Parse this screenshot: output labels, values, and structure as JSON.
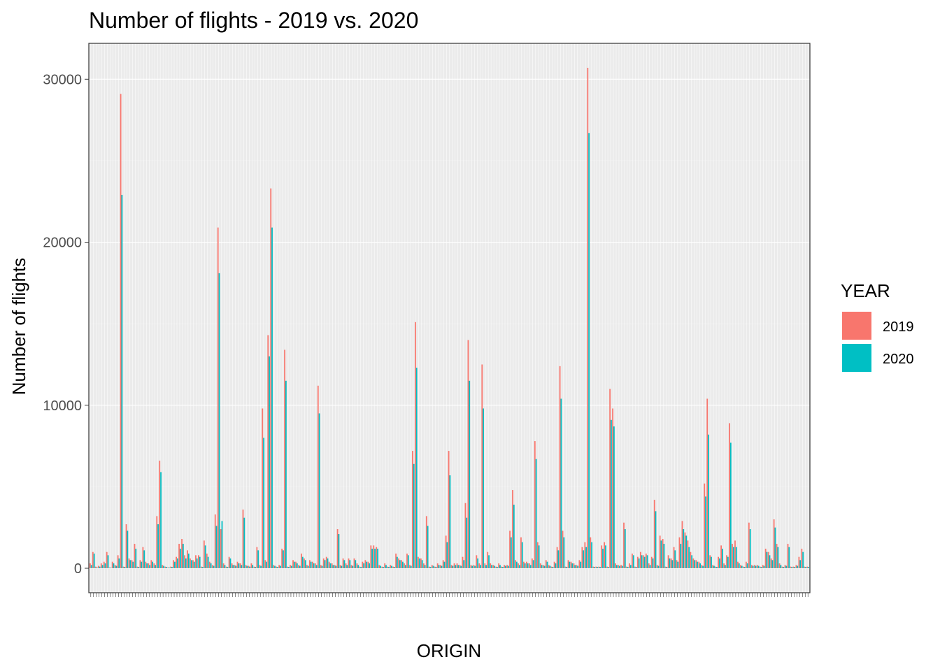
{
  "chart_data": {
    "type": "bar",
    "title": "Number of flights - 2019 vs. 2020",
    "xlabel": "ORIGIN",
    "ylabel": "Number of flights",
    "ylim": [
      -1500,
      32200
    ],
    "yticks": [
      0,
      10000,
      20000,
      30000
    ],
    "grid": true,
    "legend": {
      "title": "YEAR",
      "placement": "right",
      "entries": [
        "2019",
        "2020"
      ]
    },
    "colors": {
      "2019": "#F8766D",
      "2020": "#00BFC4"
    },
    "series": [
      {
        "name": "2019",
        "values": [
          300,
          1000,
          100,
          150,
          300,
          400,
          1000,
          50,
          400,
          200,
          800,
          29100,
          100,
          2700,
          600,
          500,
          1500,
          100,
          500,
          1300,
          400,
          300,
          500,
          300,
          3200,
          6600,
          200,
          100,
          50,
          100,
          500,
          700,
          1500,
          1800,
          800,
          1100,
          600,
          500,
          800,
          800,
          100,
          1700,
          900,
          400,
          200,
          3300,
          20900,
          2400,
          300,
          100,
          700,
          300,
          200,
          400,
          300,
          3600,
          200,
          150,
          300,
          100,
          1300,
          200,
          9800,
          500,
          14300,
          23300,
          200,
          100,
          200,
          1200,
          13400,
          100,
          200,
          500,
          400,
          200,
          900,
          600,
          200,
          500,
          400,
          300,
          11200,
          200,
          600,
          700,
          400,
          300,
          200,
          2400,
          200,
          600,
          300,
          600,
          200,
          600,
          300,
          100,
          400,
          500,
          400,
          1400,
          1400,
          1300,
          200,
          100,
          300,
          100,
          200,
          100,
          900,
          600,
          500,
          300,
          900,
          200,
          7200,
          15100,
          700,
          600,
          300,
          3200,
          100,
          200,
          100,
          300,
          200,
          500,
          2000,
          7200,
          200,
          300,
          300,
          200,
          700,
          4000,
          14000,
          200,
          200,
          800,
          300,
          12500,
          300,
          1000,
          300,
          200,
          100,
          300,
          100,
          200,
          200,
          2300,
          4800,
          500,
          300,
          1900,
          400,
          400,
          300,
          600,
          7800,
          1600,
          300,
          200,
          500,
          200,
          100,
          400,
          1300,
          12400,
          2300,
          100,
          500,
          400,
          300,
          200,
          500,
          1300,
          1600,
          30700,
          1900,
          100,
          100,
          100,
          1400,
          1600,
          100,
          11000,
          9800,
          300,
          200,
          200,
          2800,
          100,
          300,
          900,
          100,
          700,
          1000,
          800,
          900,
          300,
          700,
          4200,
          200,
          2000,
          1800,
          100,
          800,
          600,
          1300,
          500,
          1900,
          2900,
          2200,
          1700,
          1000,
          600,
          500,
          400,
          200,
          5200,
          10400,
          800,
          200,
          100,
          700,
          1400,
          300,
          800,
          8900,
          1500,
          1700,
          400,
          200,
          100,
          400,
          2800,
          200,
          200,
          200,
          100,
          200,
          1200,
          1000,
          600,
          3000,
          1500,
          300,
          100,
          200,
          1500,
          100,
          100,
          200,
          700,
          1200,
          100,
          100
        ]
      },
      {
        "name": "2020",
        "values": [
          200,
          900,
          50,
          100,
          200,
          300,
          800,
          30,
          300,
          150,
          600,
          22900,
          80,
          2300,
          500,
          400,
          1200,
          80,
          400,
          1100,
          300,
          200,
          400,
          200,
          2700,
          5900,
          150,
          80,
          40,
          80,
          400,
          600,
          1200,
          1500,
          600,
          900,
          500,
          400,
          600,
          700,
          80,
          1400,
          700,
          300,
          150,
          2600,
          18100,
          2900,
          200,
          80,
          600,
          200,
          150,
          300,
          200,
          3100,
          150,
          100,
          200,
          80,
          1100,
          150,
          8000,
          400,
          13000,
          20900,
          150,
          80,
          150,
          1100,
          11500,
          80,
          150,
          400,
          300,
          150,
          700,
          500,
          150,
          400,
          300,
          200,
          9500,
          150,
          500,
          600,
          300,
          200,
          150,
          2100,
          150,
          500,
          200,
          500,
          150,
          500,
          200,
          80,
          300,
          400,
          300,
          1200,
          1200,
          1200,
          150,
          80,
          200,
          80,
          150,
          80,
          700,
          500,
          400,
          200,
          800,
          150,
          6400,
          12300,
          600,
          500,
          200,
          2600,
          80,
          150,
          80,
          200,
          150,
          400,
          1600,
          5700,
          150,
          200,
          200,
          150,
          500,
          3100,
          11500,
          150,
          150,
          600,
          200,
          9800,
          200,
          800,
          200,
          150,
          80,
          200,
          80,
          150,
          150,
          1900,
          3900,
          400,
          200,
          1600,
          300,
          300,
          200,
          500,
          6700,
          1400,
          200,
          150,
          400,
          150,
          80,
          300,
          1100,
          10400,
          1900,
          80,
          400,
          300,
          200,
          150,
          400,
          1100,
          1300,
          26700,
          1600,
          80,
          80,
          80,
          1200,
          1400,
          80,
          9100,
          8700,
          200,
          150,
          150,
          2400,
          80,
          200,
          800,
          80,
          600,
          800,
          700,
          800,
          200,
          600,
          3500,
          150,
          1700,
          1500,
          80,
          600,
          500,
          1100,
          400,
          1500,
          2400,
          2000,
          1300,
          800,
          500,
          400,
          300,
          150,
          4400,
          8200,
          700,
          150,
          80,
          600,
          1200,
          200,
          700,
          7700,
          1300,
          1300,
          300,
          150,
          80,
          300,
          2400,
          150,
          150,
          150,
          80,
          150,
          1000,
          800,
          500,
          2500,
          1300,
          200,
          80,
          150,
          1300,
          80,
          80,
          150,
          500,
          1000,
          80,
          80
        ]
      }
    ]
  }
}
